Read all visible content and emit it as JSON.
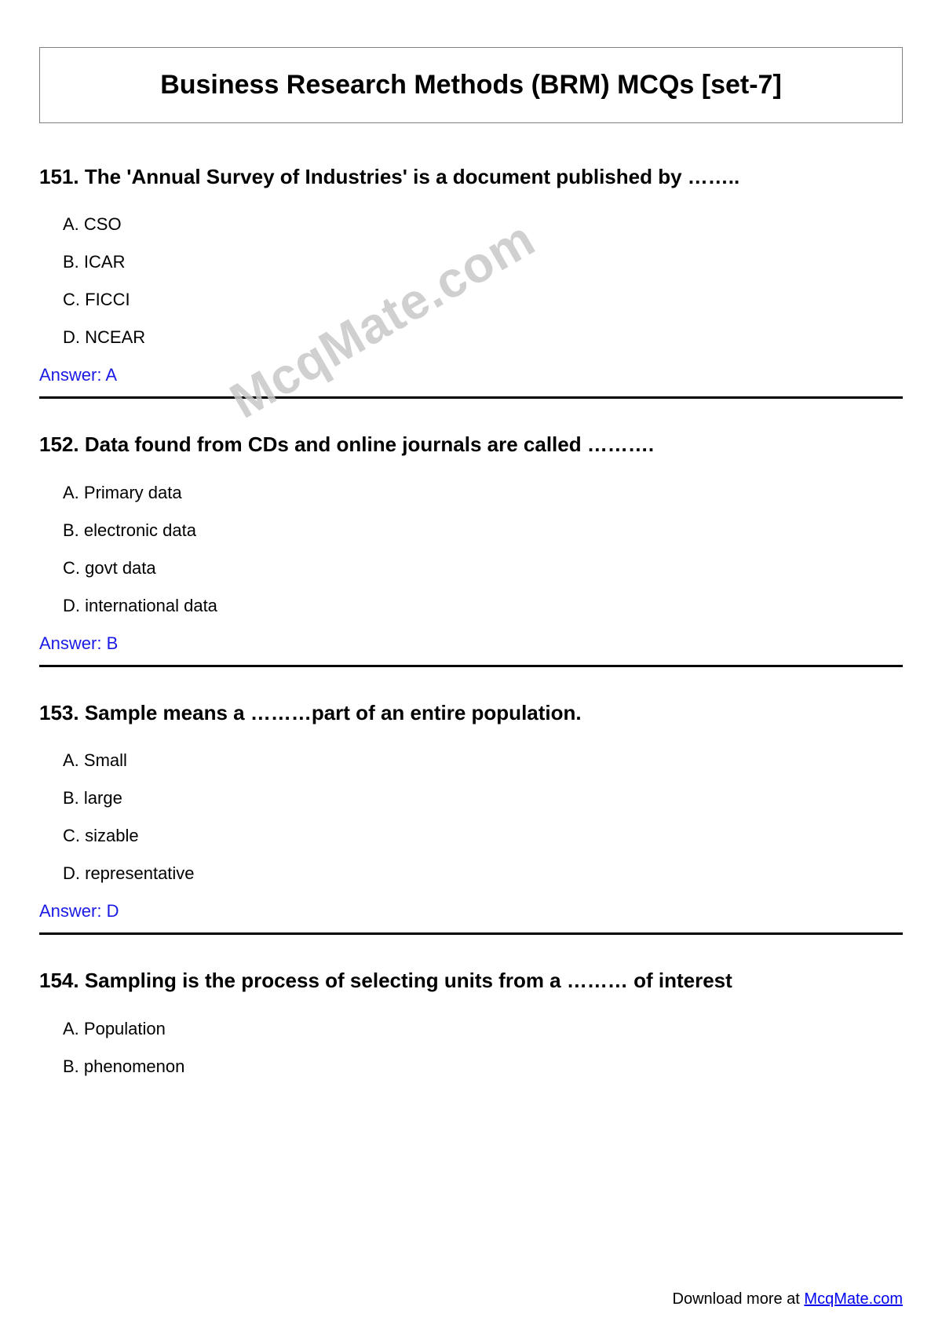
{
  "title": "Business Research Methods (BRM) MCQs [set-7]",
  "watermark_text": "McqMate.com",
  "answer_color": "#1a1ae6",
  "link_color": "#0000ee",
  "text_color": "#000000",
  "border_color": "#808080",
  "divider_color": "#000000",
  "title_fontsize": 34,
  "question_fontsize": 26,
  "option_fontsize": 22,
  "answer_fontsize": 22,
  "footer_fontsize": 20,
  "questions": [
    {
      "number": "151",
      "text": "The 'Annual Survey of Industries' is a document published by ……..",
      "options": {
        "A": "CSO",
        "B": "ICAR",
        "C": "FICCI",
        "D": "NCEAR"
      },
      "answer": "Answer: A",
      "show_divider": true
    },
    {
      "number": "152",
      "text": "Data found from CDs and online journals are called ……….",
      "options": {
        "A": "Primary data",
        "B": "electronic data",
        "C": "govt data",
        "D": "international data"
      },
      "answer": "Answer: B",
      "show_divider": true
    },
    {
      "number": "153",
      "text": "Sample means a ………part of an entire population.",
      "options": {
        "A": "Small",
        "B": "large",
        "C": "sizable",
        "D": "representative"
      },
      "answer": "Answer: D",
      "show_divider": true
    },
    {
      "number": "154",
      "text": "Sampling is the process of selecting units from a ……… of interest",
      "options": {
        "A": "Population",
        "B": "phenomenon"
      },
      "answer": null,
      "show_divider": false
    }
  ],
  "footer": {
    "prefix": "Download more at ",
    "link_text": "McqMate.com"
  }
}
